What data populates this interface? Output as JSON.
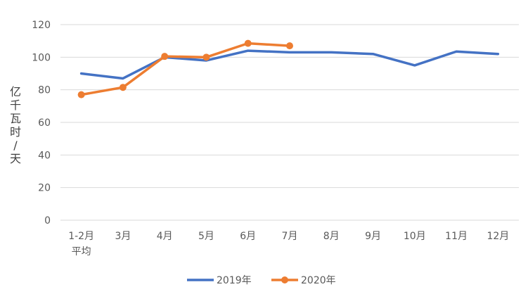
{
  "chart_data": {
    "type": "line",
    "title": "",
    "xlabel": "",
    "ylabel": "亿千瓦时/天",
    "categories": [
      "1-2月平均",
      "3月",
      "4月",
      "5月",
      "6月",
      "7月",
      "8月",
      "9月",
      "10月",
      "11月",
      "12月"
    ],
    "category_lines": [
      [
        "1-2月",
        "平均"
      ],
      [
        "3月"
      ],
      [
        "4月"
      ],
      [
        "5月"
      ],
      [
        "6月"
      ],
      [
        "7月"
      ],
      [
        "8月"
      ],
      [
        "9月"
      ],
      [
        "10月"
      ],
      [
        "11月"
      ],
      [
        "12月"
      ]
    ],
    "ylim": [
      0,
      120
    ],
    "yticks": [
      0,
      20,
      40,
      60,
      80,
      100,
      120
    ],
    "grid": true,
    "legend_position": "bottom",
    "series": [
      {
        "name": "2019年",
        "color": "#4472C4",
        "markers": false,
        "values": [
          90,
          87,
          100,
          98,
          104,
          103,
          103,
          102,
          95,
          103.5,
          102
        ]
      },
      {
        "name": "2020年",
        "color": "#ED7D31",
        "markers": true,
        "values": [
          77,
          81.5,
          100.5,
          100,
          108.5,
          107,
          null,
          null,
          null,
          null,
          null
        ]
      }
    ]
  }
}
